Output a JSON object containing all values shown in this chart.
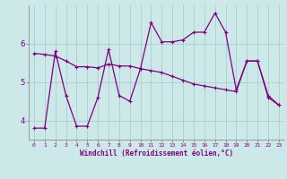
{
  "xlabel": "Windchill (Refroidissement éolien,°C)",
  "xlim": [
    -0.5,
    23.5
  ],
  "ylim": [
    3.5,
    7.0
  ],
  "yticks": [
    4,
    5,
    6
  ],
  "xticks": [
    0,
    1,
    2,
    3,
    4,
    5,
    6,
    7,
    8,
    9,
    10,
    11,
    12,
    13,
    14,
    15,
    16,
    17,
    18,
    19,
    20,
    21,
    22,
    23
  ],
  "line_color": "#800080",
  "bg_color": "#cce8e8",
  "grid_color": "#aacfcf",
  "line1_x": [
    0,
    1,
    2,
    3,
    4,
    5,
    6,
    7,
    8,
    9,
    10,
    11,
    12,
    13,
    14,
    15,
    16,
    17,
    18,
    19,
    20,
    21,
    22,
    23
  ],
  "line1_y": [
    3.8,
    3.8,
    5.8,
    4.65,
    3.85,
    3.85,
    4.6,
    5.85,
    4.65,
    4.5,
    5.35,
    6.55,
    6.05,
    6.05,
    6.1,
    6.3,
    6.3,
    6.8,
    6.3,
    4.8,
    5.55,
    5.55,
    4.6,
    4.4
  ],
  "line2_x": [
    0,
    1,
    2,
    3,
    4,
    5,
    6,
    7,
    8,
    9,
    10,
    11,
    12,
    13,
    14,
    15,
    16,
    17,
    18,
    19,
    20,
    21,
    22,
    23
  ],
  "line2_y": [
    5.75,
    5.72,
    5.68,
    5.55,
    5.4,
    5.4,
    5.37,
    5.47,
    5.42,
    5.42,
    5.35,
    5.3,
    5.25,
    5.15,
    5.05,
    4.95,
    4.9,
    4.85,
    4.8,
    4.75,
    5.55,
    5.55,
    4.65,
    4.4
  ]
}
